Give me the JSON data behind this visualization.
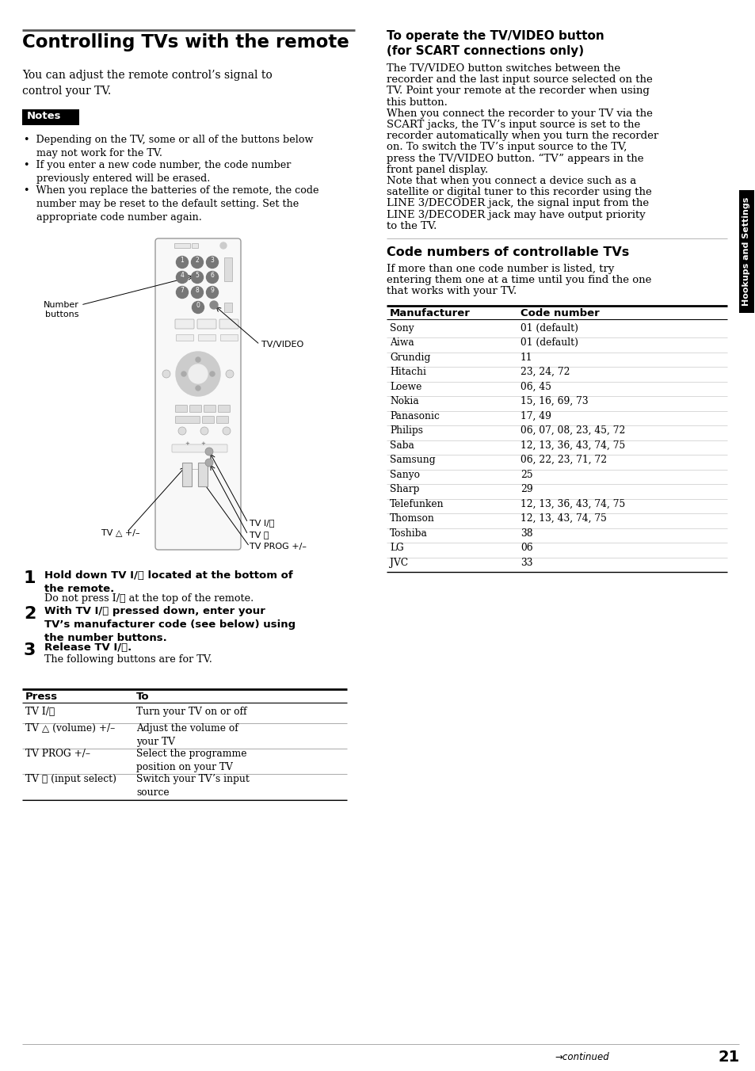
{
  "page_bg": "#ffffff",
  "title": "Controlling TVs with the remote",
  "intro_text": "You can adjust the remote control’s signal to\ncontrol your TV.",
  "notes_text": "Notes",
  "bullet_points": [
    "•  Depending on the TV, some or all of the buttons below\n    may not work for the TV.",
    "•  If you enter a new code number, the code number\n    previously entered will be erased.",
    "•  When you replace the batteries of the remote, the code\n    number may be reset to the default setting. Set the\n    appropriate code number again."
  ],
  "steps": [
    {
      "num": "1",
      "bold": "Hold down TV I/ⓘ located at the bottom of\nthe remote.",
      "normal": "Do not press I/ⓘ at the top of the remote."
    },
    {
      "num": "2",
      "bold": "With TV I/ⓘ pressed down, enter your\nTV’s manufacturer code (see below) using\nthe number buttons.",
      "normal": ""
    },
    {
      "num": "3",
      "bold": "Release TV I/ⓘ.",
      "normal": "The following buttons are for TV."
    }
  ],
  "press_table_headers": [
    "Press",
    "To"
  ],
  "press_table_rows": [
    [
      "TV I/ⓘ",
      "Turn your TV on or off"
    ],
    [
      "TV △ (volume) +/–",
      "Adjust the volume of\nyour TV"
    ],
    [
      "TV PROG +/–",
      "Select the programme\nposition on your TV"
    ],
    [
      "TV ⮎ (input select)",
      "Switch your TV’s input\nsource"
    ]
  ],
  "right_title1": "To operate the TV/VIDEO button\n(for SCART connections only)",
  "right_para1_lines": [
    "The TV/VIDEO button switches between the",
    "recorder and the last input source selected on the",
    "TV. Point your remote at the recorder when using",
    "this button.",
    "When you connect the recorder to your TV via the",
    "SCART jacks, the TV’s input source is set to the",
    "recorder automatically when you turn the recorder",
    "on. To switch the TV’s input source to the TV,",
    "press the TV/VIDEO button. “TV” appears in the",
    "front panel display.",
    "Note that when you connect a device such as a",
    "satellite or digital tuner to this recorder using the",
    "LINE 3/DECODER jack, the signal input from the",
    "LINE 3/DECODER jack may have output priority",
    "to the TV."
  ],
  "right_title2": "Code numbers of controllable TVs",
  "right_para2_lines": [
    "If more than one code number is listed, try",
    "entering them one at a time until you find the one",
    "that works with your TV."
  ],
  "code_table_headers": [
    "Manufacturer",
    "Code number"
  ],
  "code_table_rows": [
    [
      "Sony",
      "01 (default)"
    ],
    [
      "Aiwa",
      "01 (default)"
    ],
    [
      "Grundig",
      "11"
    ],
    [
      "Hitachi",
      "23, 24, 72"
    ],
    [
      "Loewe",
      "06, 45"
    ],
    [
      "Nokia",
      "15, 16, 69, 73"
    ],
    [
      "Panasonic",
      "17, 49"
    ],
    [
      "Philips",
      "06, 07, 08, 23, 45, 72"
    ],
    [
      "Saba",
      "12, 13, 36, 43, 74, 75"
    ],
    [
      "Samsung",
      "06, 22, 23, 71, 72"
    ],
    [
      "Sanyo",
      "25"
    ],
    [
      "Sharp",
      "29"
    ],
    [
      "Telefunken",
      "12, 13, 36, 43, 74, 75"
    ],
    [
      "Thomson",
      "12, 13, 43, 74, 75"
    ],
    [
      "Toshiba",
      "38"
    ],
    [
      "LG",
      "06"
    ],
    [
      "JVC",
      "33"
    ]
  ],
  "sidebar_text": "Hookups and Settings",
  "page_number": "21",
  "continued_text": "→continued"
}
